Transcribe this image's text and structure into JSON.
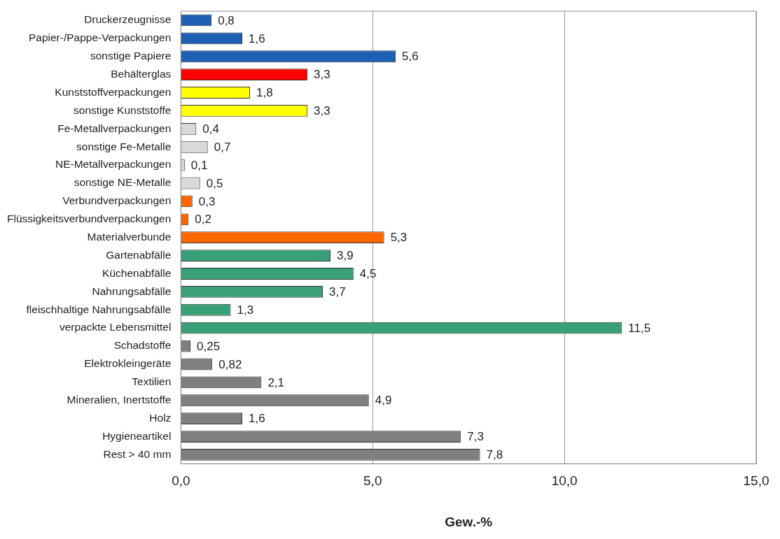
{
  "chart_data": {
    "type": "bar",
    "orientation": "horizontal",
    "xlabel": "Gew.-%",
    "categories": [
      "Druckerzeugnisse",
      "Papier-/Pappe-Verpackungen",
      "sonstige Papiere",
      "Behälterglas",
      "Kunststoffverpackungen",
      "sonstige Kunststoffe",
      "Fe-Metallverpackungen",
      "sonstige Fe-Metalle",
      "NE-Metallverpackungen",
      "sonstige NE-Metalle",
      "Verbundverpackungen",
      "Flüssigkeitsverbundverpackungen",
      "Materialverbunde",
      "Gartenabfälle",
      "Küchenabfälle",
      "Nahrungsabfälle",
      "fleischhaltige Nahrungsabfälle",
      "verpackte Lebensmittel",
      "Schadstoffe",
      "Elektrokleingeräte",
      "Textilien",
      "Mineralien, Inertstoffe",
      "Holz",
      "Hygieneartikel",
      "Rest > 40 mm"
    ],
    "values": [
      0.8,
      1.6,
      5.6,
      3.3,
      1.8,
      3.3,
      0.4,
      0.7,
      0.1,
      0.5,
      0.3,
      0.2,
      5.3,
      3.9,
      4.5,
      3.7,
      1.3,
      11.5,
      0.25,
      0.82,
      2.1,
      4.9,
      1.6,
      7.3,
      7.8
    ],
    "value_labels": [
      "0,8",
      "1,6",
      "5,6",
      "3,3",
      "1,8",
      "3,3",
      "0,4",
      "0,7",
      "0,1",
      "0,5",
      "0,3",
      "0,2",
      "5,3",
      "3,9",
      "4,5",
      "3,7",
      "1,3",
      "11,5",
      "0,25",
      "0,82",
      "2,1",
      "4,9",
      "1,6",
      "7,3",
      "7,8"
    ],
    "colors": [
      "#1f5fb4",
      "#1f5fb4",
      "#1f5fb4",
      "#ff0000",
      "#ffff00",
      "#ffff00",
      "#d9d9d9",
      "#d9d9d9",
      "#d9d9d9",
      "#d9d9d9",
      "#ff6600",
      "#ff6600",
      "#ff6600",
      "#3aa077",
      "#3aa077",
      "#3aa077",
      "#3aa077",
      "#3aa077",
      "#7f7f7f",
      "#7f7f7f",
      "#7f7f7f",
      "#7f7f7f",
      "#7f7f7f",
      "#7f7f7f",
      "#7f7f7f"
    ],
    "xlim": [
      0,
      15
    ],
    "xticks": [
      {
        "value": 0,
        "label": "0,0"
      },
      {
        "value": 5,
        "label": "5,0"
      },
      {
        "value": 10,
        "label": "10,0"
      },
      {
        "value": 15,
        "label": "15,0"
      }
    ],
    "grid": "x",
    "legend": false
  }
}
